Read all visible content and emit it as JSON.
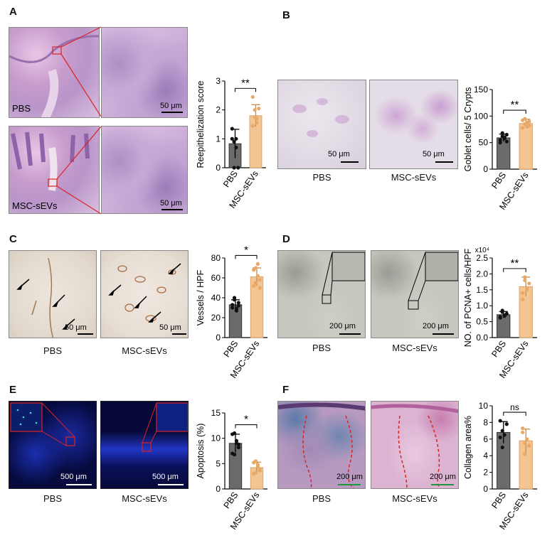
{
  "panels": {
    "A": {
      "label": "A",
      "image_labels": {
        "pbs": "PBS",
        "msc": "MSC-sEVs"
      },
      "scale_bar_top": "50 μm",
      "scale_bar_bottom": "50 μm"
    },
    "B": {
      "label": "B",
      "scale_bar_left": "50 μm",
      "scale_bar_right": "50 μm",
      "caption_left": "PBS",
      "caption_right": "MSC-sEVs"
    },
    "C": {
      "label": "C",
      "scale_bar_left": "50 μm",
      "scale_bar_right": "50 μm",
      "caption_left": "PBS",
      "caption_right": "MSC-sEVs"
    },
    "D": {
      "label": "D",
      "scale_bar_left": "200 μm",
      "scale_bar_right": "200 μm",
      "caption_left": "PBS",
      "caption_right": "MSC-sEVs"
    },
    "E": {
      "label": "E",
      "scale_bar_left": "500 μm",
      "scale_bar_right": "500 μm",
      "caption_left": "PBS",
      "caption_right": "MSC-sEVs"
    },
    "F": {
      "label": "F",
      "scale_bar_left": "200 μm",
      "scale_bar_right": "200 μm",
      "caption_left": "PBS",
      "caption_right": "MSC-sEVs"
    }
  },
  "colors": {
    "pbs_bar": "#6b6b6b",
    "msc_bar": "#f2c592",
    "msc_point": "#e8a968",
    "sig_line": "#111111"
  },
  "chart_data": [
    {
      "id": "A",
      "type": "bar",
      "categories": [
        "PBS",
        "MSC-sEVs"
      ],
      "values": [
        0.83,
        1.8
      ],
      "errors": [
        0.5,
        0.38
      ],
      "points": [
        [
          1.0,
          0.0,
          1.0,
          0.0,
          1.35,
          0.9,
          0.7
        ],
        [
          1.45,
          2.0,
          1.7,
          2.05,
          2.45,
          1.75,
          1.55
        ]
      ],
      "ylabel": "Reepithelization score",
      "ylim": [
        0,
        3
      ],
      "yticks": [
        0,
        1,
        2,
        3
      ],
      "significance": "**"
    },
    {
      "id": "B",
      "type": "bar",
      "categories": [
        "PBS",
        "MSC-sEVs"
      ],
      "values": [
        59,
        86
      ],
      "errors": [
        7,
        8
      ],
      "points": [
        [
          50,
          62,
          58,
          65,
          55,
          68,
          60,
          52
        ],
        [
          78,
          95,
          88,
          82,
          92,
          85,
          80,
          90
        ]
      ],
      "ylabel": "Goblet cells/ 5 Crypts",
      "ylim": [
        0,
        150
      ],
      "yticks": [
        0,
        50,
        100,
        150
      ],
      "significance": "**"
    },
    {
      "id": "C",
      "type": "bar",
      "categories": [
        "PBS",
        "MSC-sEVs"
      ],
      "values": [
        33,
        61
      ],
      "errors": [
        5,
        9
      ],
      "points": [
        [
          30,
          38,
          27,
          35,
          33,
          40,
          29,
          32
        ],
        [
          52,
          70,
          62,
          58,
          68,
          55,
          74,
          50
        ]
      ],
      "ylabel": "Vessels / HPF",
      "ylim": [
        0,
        80
      ],
      "yticks": [
        0,
        20,
        40,
        60,
        80
      ],
      "significance": "*"
    },
    {
      "id": "D",
      "type": "bar",
      "categories": [
        "PBS",
        "MSC-sEVs"
      ],
      "values": [
        0.72,
        1.6
      ],
      "errors": [
        0.1,
        0.3
      ],
      "points": [
        [
          0.62,
          0.8,
          0.7,
          0.75,
          0.65,
          0.85,
          0.68
        ],
        [
          1.2,
          1.8,
          1.5,
          1.7,
          1.4,
          1.9,
          1.55
        ]
      ],
      "ylabel": "NO. of PCNA+ cells/HPF",
      "ylim": [
        0,
        2.5
      ],
      "yticks": [
        0.0,
        0.5,
        1.0,
        1.5,
        2.0,
        2.5
      ],
      "ytick_labels": [
        "0.0",
        "0.5",
        "1.0",
        "1.5",
        "2.0",
        "2.5"
      ],
      "multiplier": "x10⁴",
      "significance": "**"
    },
    {
      "id": "E",
      "type": "bar",
      "categories": [
        "PBS",
        "MSC-sEVs"
      ],
      "values": [
        9.0,
        4.2
      ],
      "errors": [
        1.8,
        1.1
      ],
      "points": [
        [
          7.0,
          11.0,
          9.5,
          8.2,
          10.8,
          6.8,
          9.0,
          8.8
        ],
        [
          3.0,
          5.5,
          4.8,
          3.8,
          5.2,
          3.2,
          4.5,
          3.6
        ]
      ],
      "ylabel": "Apoptosis (%)",
      "ylim": [
        0,
        15
      ],
      "yticks": [
        0,
        5,
        10,
        15
      ],
      "significance": "*"
    },
    {
      "id": "F",
      "type": "bar",
      "categories": [
        "PBS",
        "MSC-sEVs"
      ],
      "values": [
        6.8,
        5.8
      ],
      "errors": [
        1.3,
        1.4
      ],
      "points": [
        [
          8.2,
          5.0,
          6.5,
          7.8,
          6.2,
          7.0
        ],
        [
          7.3,
          4.2,
          6.0,
          5.2,
          6.8,
          5.5
        ]
      ],
      "ylabel": "Collagen area%",
      "ylim": [
        0,
        10
      ],
      "yticks": [
        0,
        2,
        4,
        6,
        8,
        10
      ],
      "significance": "ns"
    }
  ]
}
